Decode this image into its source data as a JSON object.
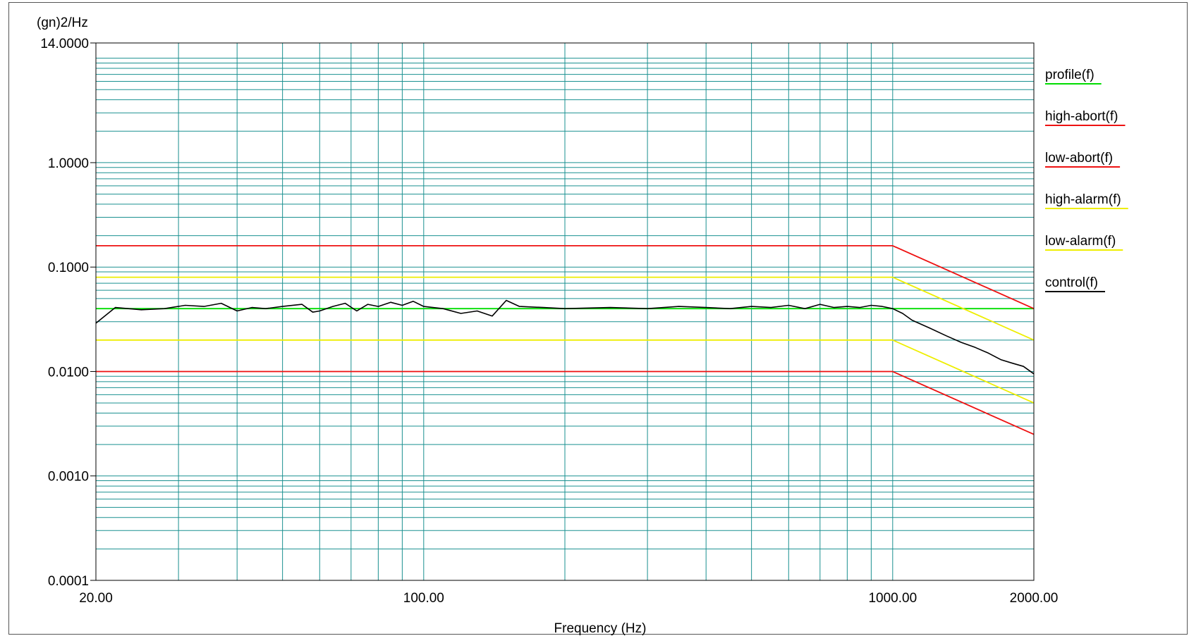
{
  "chart_data": {
    "type": "line",
    "ylabel": "(gn)2/Hz",
    "xlabel": "Frequency (Hz)",
    "x_scale": "log",
    "y_scale": "log",
    "xlim": [
      20,
      2000
    ],
    "ylim": [
      0.0001,
      14
    ],
    "grid": true,
    "legend_position": "right",
    "y_tick_labels": [
      {
        "value": 14,
        "label": "14.0000"
      },
      {
        "value": 1,
        "label": "1.0000"
      },
      {
        "value": 0.1,
        "label": "0.1000"
      },
      {
        "value": 0.01,
        "label": "0.0100"
      },
      {
        "value": 0.001,
        "label": "0.0010"
      },
      {
        "value": 0.0001,
        "label": "0.0001"
      }
    ],
    "x_tick_labels": [
      {
        "value": 20,
        "label": "20.00"
      },
      {
        "value": 100,
        "label": "100.00"
      },
      {
        "value": 1000,
        "label": "1000.00"
      },
      {
        "value": 2000,
        "label": "2000.00"
      }
    ],
    "series": [
      {
        "name": "profile(f)",
        "color": "#00dd00",
        "x": [
          20,
          2000
        ],
        "y": [
          0.04,
          0.04
        ]
      },
      {
        "name": "high-abort(f)",
        "color": "#ee1111",
        "x": [
          20,
          1000,
          2000
        ],
        "y": [
          0.16,
          0.16,
          0.04
        ]
      },
      {
        "name": "low-abort(f)",
        "color": "#ee1111",
        "x": [
          20,
          1000,
          2000
        ],
        "y": [
          0.01,
          0.01,
          0.0025
        ]
      },
      {
        "name": "high-alarm(f)",
        "color": "#eeee00",
        "x": [
          20,
          1000,
          2000
        ],
        "y": [
          0.08,
          0.08,
          0.02
        ]
      },
      {
        "name": "low-alarm(f)",
        "color": "#eeee00",
        "x": [
          20,
          1000,
          2000
        ],
        "y": [
          0.02,
          0.02,
          0.005
        ]
      },
      {
        "name": "control(f)",
        "color": "#000000",
        "x": [
          20,
          22,
          25,
          28,
          31,
          34,
          37,
          40,
          43,
          46,
          50,
          55,
          58,
          60,
          64,
          68,
          72,
          76,
          80,
          85,
          90,
          95,
          100,
          110,
          120,
          130,
          140,
          150,
          160,
          180,
          200,
          250,
          300,
          350,
          400,
          450,
          500,
          550,
          600,
          650,
          700,
          750,
          800,
          850,
          900,
          950,
          1000,
          1050,
          1100,
          1200,
          1300,
          1400,
          1500,
          1600,
          1700,
          1800,
          1900,
          2000
        ],
        "y": [
          0.029,
          0.041,
          0.039,
          0.04,
          0.043,
          0.042,
          0.045,
          0.038,
          0.041,
          0.04,
          0.042,
          0.044,
          0.037,
          0.038,
          0.042,
          0.045,
          0.038,
          0.044,
          0.042,
          0.046,
          0.043,
          0.047,
          0.042,
          0.04,
          0.036,
          0.038,
          0.034,
          0.048,
          0.042,
          0.041,
          0.04,
          0.041,
          0.04,
          0.042,
          0.041,
          0.04,
          0.042,
          0.041,
          0.043,
          0.04,
          0.044,
          0.041,
          0.042,
          0.041,
          0.043,
          0.042,
          0.04,
          0.036,
          0.031,
          0.026,
          0.022,
          0.019,
          0.017,
          0.015,
          0.013,
          0.012,
          0.0112,
          0.0095
        ]
      }
    ]
  }
}
